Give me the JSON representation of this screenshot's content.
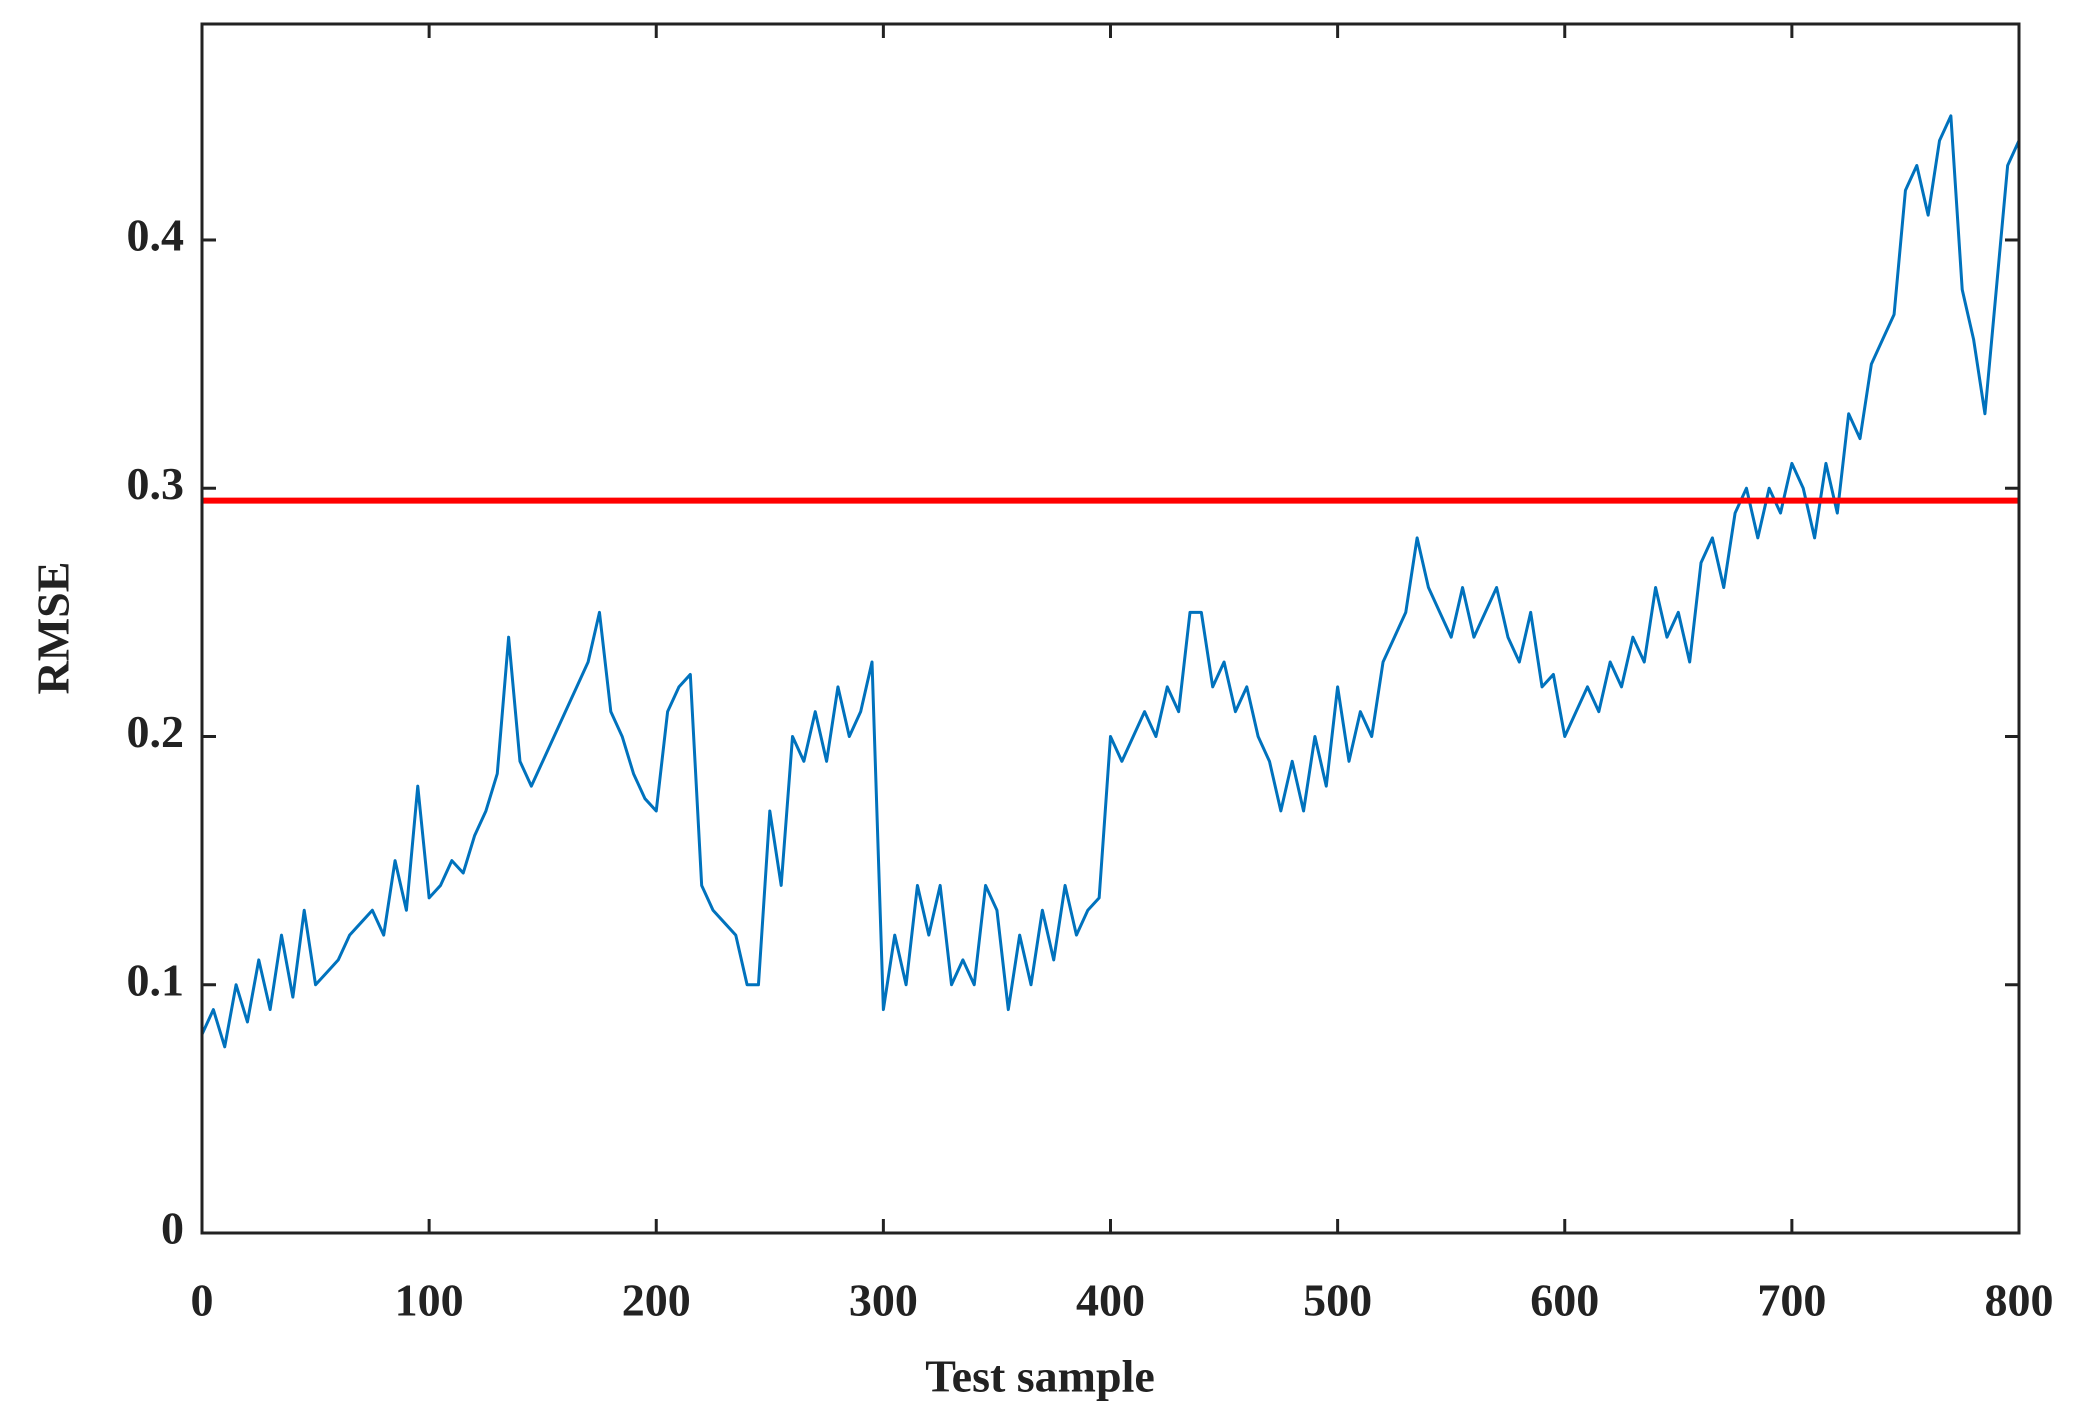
{
  "chart_data": {
    "type": "line",
    "x_label": "Test sample",
    "y_label": "RMSE",
    "x": [
      0,
      5,
      10,
      15,
      20,
      25,
      30,
      35,
      40,
      45,
      50,
      55,
      60,
      65,
      70,
      75,
      80,
      85,
      90,
      95,
      100,
      105,
      110,
      115,
      120,
      125,
      130,
      135,
      140,
      145,
      150,
      155,
      160,
      165,
      170,
      175,
      180,
      185,
      190,
      195,
      200,
      205,
      210,
      215,
      220,
      225,
      230,
      235,
      240,
      245,
      250,
      255,
      260,
      265,
      270,
      275,
      280,
      285,
      290,
      295,
      300,
      305,
      310,
      315,
      320,
      325,
      330,
      335,
      340,
      345,
      350,
      355,
      360,
      365,
      370,
      375,
      380,
      385,
      390,
      395,
      400,
      405,
      410,
      415,
      420,
      425,
      430,
      435,
      440,
      445,
      450,
      455,
      460,
      465,
      470,
      475,
      480,
      485,
      490,
      495,
      500,
      505,
      510,
      515,
      520,
      525,
      530,
      535,
      540,
      545,
      550,
      555,
      560,
      565,
      570,
      575,
      580,
      585,
      590,
      595,
      600,
      605,
      610,
      615,
      620,
      625,
      630,
      635,
      640,
      645,
      650,
      655,
      660,
      665,
      670,
      675,
      680,
      685,
      690,
      695,
      700,
      705,
      710,
      715,
      720,
      725,
      730,
      735,
      740,
      745,
      750,
      755,
      760,
      765,
      770,
      775,
      780,
      785,
      790,
      795,
      800
    ],
    "series": [
      {
        "color": "#0072bd",
        "values": [
          0.08,
          0.09,
          0.075,
          0.1,
          0.085,
          0.11,
          0.09,
          0.12,
          0.095,
          0.13,
          0.1,
          0.105,
          0.11,
          0.12,
          0.125,
          0.13,
          0.12,
          0.15,
          0.13,
          0.18,
          0.135,
          0.14,
          0.15,
          0.145,
          0.16,
          0.17,
          0.185,
          0.24,
          0.19,
          0.18,
          0.19,
          0.2,
          0.21,
          0.22,
          0.23,
          0.25,
          0.21,
          0.2,
          0.185,
          0.175,
          0.17,
          0.21,
          0.22,
          0.225,
          0.14,
          0.13,
          0.125,
          0.12,
          0.1,
          0.1,
          0.17,
          0.14,
          0.2,
          0.19,
          0.21,
          0.19,
          0.22,
          0.2,
          0.21,
          0.23,
          0.09,
          0.12,
          0.1,
          0.14,
          0.12,
          0.14,
          0.1,
          0.11,
          0.1,
          0.14,
          0.13,
          0.09,
          0.12,
          0.1,
          0.13,
          0.11,
          0.14,
          0.12,
          0.13,
          0.135,
          0.2,
          0.19,
          0.2,
          0.21,
          0.2,
          0.22,
          0.21,
          0.25,
          0.25,
          0.22,
          0.23,
          0.21,
          0.22,
          0.2,
          0.19,
          0.17,
          0.19,
          0.17,
          0.2,
          0.18,
          0.22,
          0.19,
          0.21,
          0.2,
          0.23,
          0.24,
          0.25,
          0.28,
          0.26,
          0.25,
          0.24,
          0.26,
          0.24,
          0.25,
          0.26,
          0.24,
          0.23,
          0.25,
          0.22,
          0.225,
          0.2,
          0.21,
          0.22,
          0.21,
          0.23,
          0.22,
          0.24,
          0.23,
          0.26,
          0.24,
          0.25,
          0.23,
          0.27,
          0.28,
          0.26,
          0.29,
          0.3,
          0.28,
          0.3,
          0.29,
          0.31,
          0.3,
          0.28,
          0.31,
          0.29,
          0.33,
          0.32,
          0.35,
          0.36,
          0.37,
          0.42,
          0.43,
          0.41,
          0.44,
          0.45,
          0.38,
          0.36,
          0.33,
          0.38,
          0.43,
          0.44
        ]
      }
    ],
    "threshold": {
      "value": 0.295,
      "color": "#ff0000"
    },
    "xlim": [
      0,
      800
    ],
    "xticks": [
      0,
      100,
      200,
      300,
      400,
      500,
      600,
      700,
      800
    ],
    "ylim": [
      0,
      0.487
    ],
    "yticks": [
      0,
      0.1,
      0.2,
      0.3,
      0.4
    ]
  }
}
